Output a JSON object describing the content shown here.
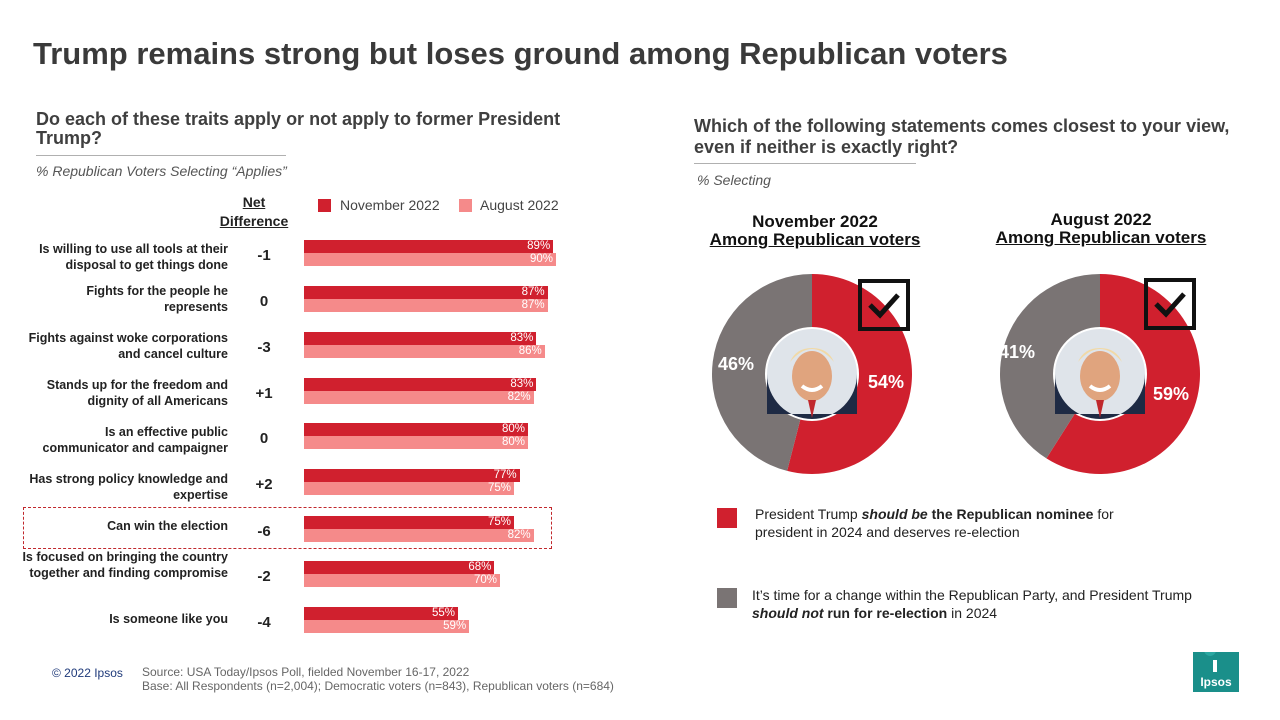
{
  "title": "Trump remains strong but loses ground among Republican voters",
  "left": {
    "question": "Do each of these traits apply or not apply to former President Trump?",
    "subtitle": "% Republican Voters Selecting “Applies”",
    "net_header": "Net Difference",
    "legend_nov": "November 2022",
    "legend_aug": "August 2022"
  },
  "right": {
    "question": "Which of the following  statements comes closest to your view, even if neither is exactly right?",
    "subtitle": "% Selecting",
    "donut_nov": {
      "line1": "November 2022",
      "line2": "Among Republican voters"
    },
    "donut_aug": {
      "line1": "August 2022",
      "line2": "Among Republican voters"
    },
    "legend": {
      "red_pre": "President Trump ",
      "red_em": "should be",
      "red_bold": " the Republican nominee",
      "red_post": " for president in 2024 and deserves re-election",
      "gray_pre": "It’s time for a change within the Republican Party, and President Trump ",
      "gray_em": "should not",
      "gray_bold": " run for re-election",
      "gray_post": " in 2024"
    }
  },
  "footer": {
    "copyright": "© 2022 Ipsos",
    "source": "Source: USA Today/Ipsos Poll, fielded November  16-17, 2022",
    "base": "Base: All Respondents (n=2,004); Democratic voters (n=843), Republican voters (n=684)",
    "logo": "Ipsos"
  },
  "colors": {
    "nov": "#d0202e",
    "aug": "#f58a8a",
    "gray": "#7a7474"
  },
  "chart_data": [
    {
      "type": "bar",
      "orientation": "horizontal",
      "title": "Do each of these traits apply or not apply to former President Trump?",
      "categories": [
        "Is willing to use all tools at their disposal to get things done",
        "Fights for the people he represents",
        "Fights against woke corporations and cancel culture",
        "Stands up for the freedom and dignity of all Americans",
        "Is an effective public communicator and campaigner",
        "Has strong policy knowledge and expertise",
        "Can win the election",
        "Is focused on bringing the country together and finding compromise",
        "Is someone like you"
      ],
      "net": [
        "-1",
        "0",
        "-3",
        "+1",
        "0",
        "+2",
        "-6",
        "-2",
        "-4"
      ],
      "series": [
        {
          "name": "November 2022",
          "values": [
            89,
            87,
            83,
            83,
            80,
            77,
            75,
            68,
            55
          ],
          "labels": [
            "89%",
            "87%",
            "83%",
            "83%",
            "80%",
            "77%",
            "75%",
            "68%",
            "55%"
          ]
        },
        {
          "name": "August 2022",
          "values": [
            90,
            87,
            86,
            82,
            80,
            75,
            82,
            70,
            59
          ],
          "labels": [
            "90%",
            "87%",
            "86%",
            "82%",
            "80%",
            "75%",
            "82%",
            "70%",
            "59%"
          ]
        }
      ],
      "xlim": [
        0,
        100
      ],
      "highlighted": "Can win the election"
    },
    {
      "type": "pie",
      "title": "November 2022 Among Republican voters",
      "slices": [
        {
          "name": "should be nominee",
          "value": 54,
          "label": "54%"
        },
        {
          "name": "time for a change",
          "value": 46,
          "label": "46%"
        }
      ]
    },
    {
      "type": "pie",
      "title": "August 2022 Among Republican voters",
      "slices": [
        {
          "name": "should be nominee",
          "value": 59,
          "label": "59%"
        },
        {
          "name": "time for a change",
          "value": 41,
          "label": "41%"
        }
      ]
    }
  ]
}
